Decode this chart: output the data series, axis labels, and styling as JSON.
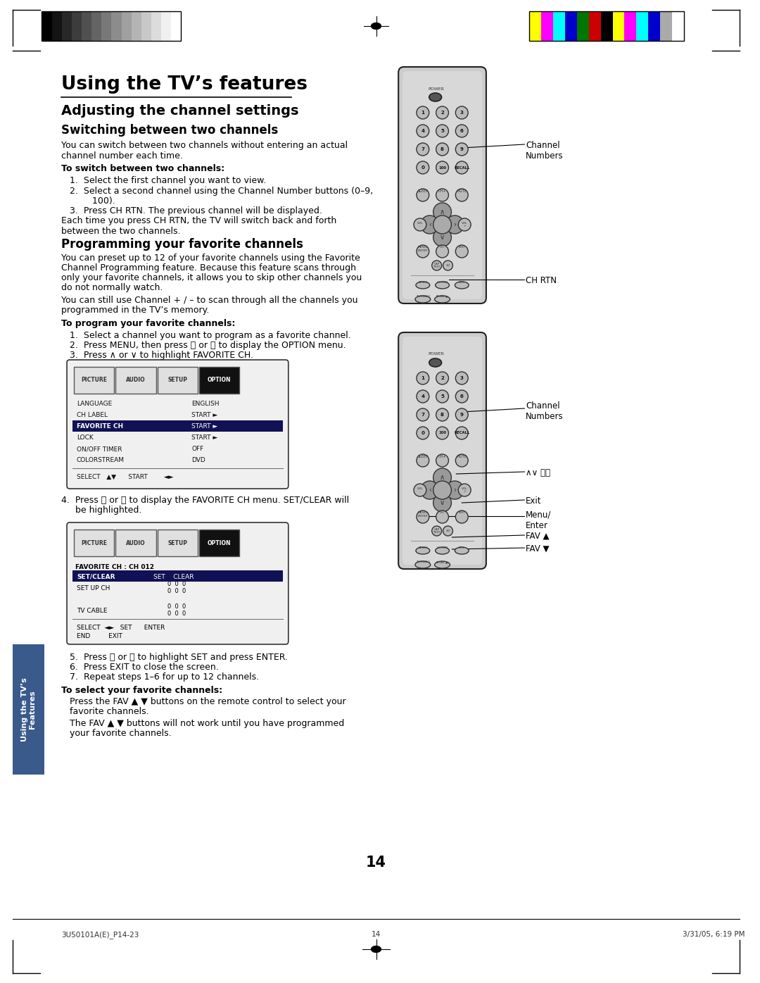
{
  "title": "Using the TV’s features",
  "subtitle1": "Adjusting the channel settings",
  "subtitle2": "Switching between two channels",
  "body_text1": "You can switch between two channels without entering an actual\nchannel number each time.",
  "bold_head1": "To switch between two channels:",
  "step1_1": "1.  Select the first channel you want to view.",
  "step1_2": "2.  Select a second channel using the Channel Number buttons (0–9,",
  "step1_2b": "        100).",
  "step1_3": "3.  Press CH RTN. The previous channel will be displayed.",
  "body_text1b": "Each time you press CH RTN, the TV will switch back and forth\nbetween the two channels.",
  "subtitle3": "Programming your favorite channels",
  "body_text2a": "You can preset up to 12 of your favorite channels using the Favorite",
  "body_text2b": "Channel Programming feature. Because this feature scans through",
  "body_text2c": "only your favorite channels, it allows you to skip other channels you",
  "body_text2d": "do not normally watch.",
  "body_text2e": "You can still use Channel + / – to scan through all the channels you",
  "body_text2f": "programmed in the TV’s memory.",
  "bold_head2": "To program your favorite channels:",
  "step2_1": "1.  Select a channel you want to program as a favorite channel.",
  "step2_2": "2.  Press MENU, then press 《 or 》 to display the OPTION menu.",
  "step2_3": "3.  Press ∧ or ∨ to highlight FAVORITE CH.",
  "step4": "4.  Press 《 or 》 to display the FAVORITE CH menu. SET/CLEAR will",
  "step4b": "     be highlighted.",
  "step5": "5.  Press 《 or 》 to highlight SET and press ENTER.",
  "step6": "6.  Press EXIT to close the screen.",
  "step7": "7.  Repeat steps 1–6 for up to 12 channels.",
  "bold_head3": "To select your favorite channels:",
  "body_text3a": "Press the FAV ▲ ▼ buttons on the remote control to select your",
  "body_text3b": "favorite channels.",
  "body_text3c": "The FAV ▲ ▼ buttons will not work until you have programmed",
  "body_text3d": "your favorite channels.",
  "page_number": "14",
  "footer_left": "3U50101A(E)_P14-23",
  "footer_center": "14",
  "footer_right": "3/31/05, 6:19 PM",
  "sidebar_text": "Using the TV’s\nFeatures",
  "label_channel_numbers": "Channel\nNumbers",
  "label_ch_rtn": "CH RTN",
  "label_channel_numbers2": "Channel\nNumbers",
  "label_arrows": "∧∨ 《》",
  "label_exit": "Exit",
  "label_menu_enter": "Menu/\nEnter",
  "label_fav_up": "FAV ▲",
  "label_fav_down": "FAV ▼",
  "bg_color": "#ffffff",
  "text_color": "#000000",
  "grays": [
    "#000000",
    "#141414",
    "#282828",
    "#3c3c3c",
    "#505050",
    "#646464",
    "#787878",
    "#8c8c8c",
    "#a0a0a0",
    "#b4b4b4",
    "#c8c8c8",
    "#dcdcdc",
    "#f0f0f0",
    "#ffffff"
  ],
  "colors_right": [
    "#ffff00",
    "#ff00ff",
    "#00ffff",
    "#0000cc",
    "#007700",
    "#cc0000",
    "#000000",
    "#ffff00",
    "#ff00ff",
    "#00ffff",
    "#0000cc",
    "#aaaaaa",
    "#ffffff"
  ]
}
